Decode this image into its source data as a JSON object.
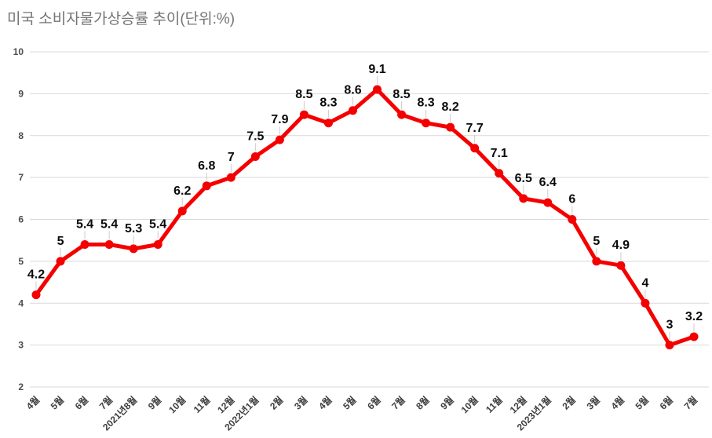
{
  "title": "미국 소비자물가상승률 추이(단위:%)",
  "colors": {
    "background": "#ffffff",
    "line": "#f50000",
    "point": "#f50000",
    "grid": "#d9d9d9",
    "stem": "#cccccc",
    "title_text": "#757575",
    "value_label": "#0b0b0b",
    "y_tick_label": "#4d4d4d",
    "x_tick_label": "#3d3d3d"
  },
  "chart_data": {
    "type": "line",
    "title": "미국 소비자물가상승률 추이(단위:%)",
    "xlabel": "",
    "ylabel": "",
    "categories": [
      "4월",
      "5월",
      "6월",
      "7월",
      "2021년8월",
      "9월",
      "10월",
      "11월",
      "12월",
      "2022년1월",
      "2월",
      "3월",
      "4월",
      "5월",
      "6월",
      "7월",
      "8월",
      "9월",
      "10월",
      "11월",
      "12월",
      "2023년1월",
      "2월",
      "3월",
      "4월",
      "5월",
      "6월",
      "7월"
    ],
    "values": [
      4.2,
      5,
      5.4,
      5.4,
      5.3,
      5.4,
      6.2,
      6.8,
      7,
      7.5,
      7.9,
      8.5,
      8.3,
      8.6,
      9.1,
      8.5,
      8.3,
      8.2,
      7.7,
      7.1,
      6.5,
      6.4,
      6,
      5,
      4.9,
      4,
      3,
      3.2
    ],
    "ylim": [
      2,
      10
    ],
    "yticks": [
      2,
      3,
      4,
      5,
      6,
      7,
      8,
      9,
      10
    ],
    "grid": "horizontal",
    "legend": "none",
    "point_labels": true,
    "x_label_rotation_deg": -45
  }
}
